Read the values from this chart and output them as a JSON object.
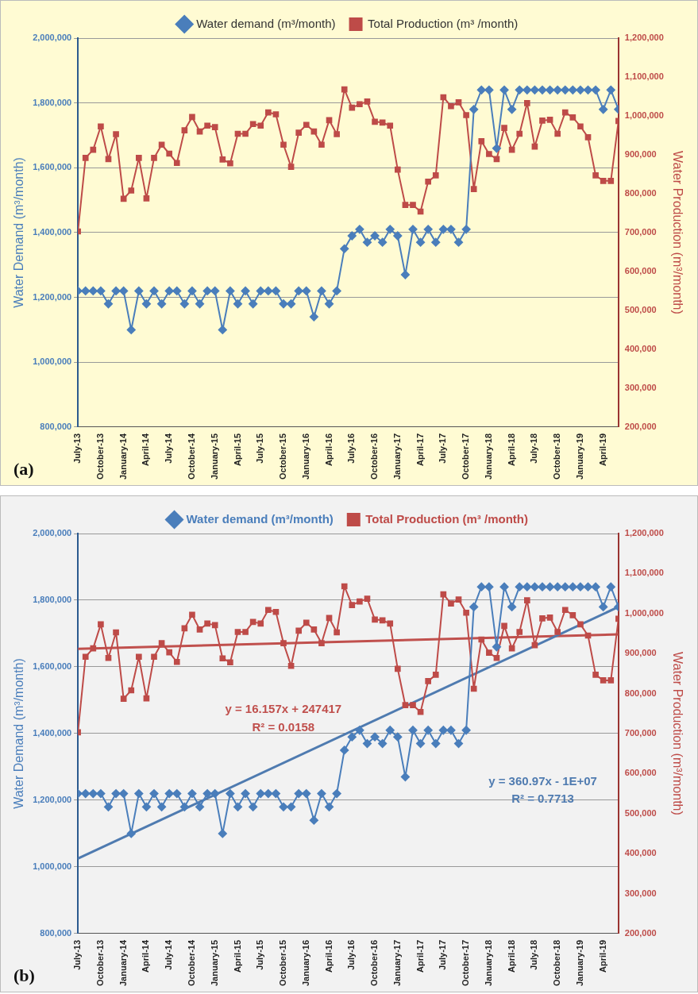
{
  "chart_data": [
    {
      "type": "line",
      "x": [
        "2013-07",
        "2013-08",
        "2013-09",
        "2013-10",
        "2013-11",
        "2013-12",
        "2014-01",
        "2014-02",
        "2014-03",
        "2014-04",
        "2014-05",
        "2014-06",
        "2014-07",
        "2014-08",
        "2014-09",
        "2014-10",
        "2014-11",
        "2014-12",
        "2015-01",
        "2015-02",
        "2015-03",
        "2015-04",
        "2015-05",
        "2015-06",
        "2015-07",
        "2015-08",
        "2015-09",
        "2015-10",
        "2015-11",
        "2015-12",
        "2016-01",
        "2016-02",
        "2016-03",
        "2016-04",
        "2016-05",
        "2016-06",
        "2016-07",
        "2016-08",
        "2016-09",
        "2016-10",
        "2016-11",
        "2016-12",
        "2017-01",
        "2017-02",
        "2017-03",
        "2017-04",
        "2017-05",
        "2017-06",
        "2017-07",
        "2017-08",
        "2017-09",
        "2017-10",
        "2017-11",
        "2017-12",
        "2018-01",
        "2018-02",
        "2018-03",
        "2018-04",
        "2018-05",
        "2018-06",
        "2018-07",
        "2018-08",
        "2018-09",
        "2018-10",
        "2018-11",
        "2018-12",
        "2019-01",
        "2019-02",
        "2019-03",
        "2019-04",
        "2019-05",
        "2019-06"
      ],
      "series": [
        {
          "name": "Water demand (m³/month)",
          "color": "#4a7ebb",
          "marker": "diamond",
          "axis": "y",
          "values": [
            1220000,
            1220000,
            1220000,
            1220000,
            1180000,
            1220000,
            1220000,
            1100000,
            1220000,
            1180000,
            1220000,
            1180000,
            1220000,
            1220000,
            1180000,
            1220000,
            1180000,
            1220000,
            1220000,
            1100000,
            1220000,
            1180000,
            1220000,
            1180000,
            1220000,
            1220000,
            1220000,
            1180000,
            1180000,
            1220000,
            1220000,
            1140000,
            1220000,
            1180000,
            1220000,
            1350000,
            1390000,
            1410000,
            1370000,
            1390000,
            1370000,
            1410000,
            1390000,
            1270000,
            1410000,
            1370000,
            1410000,
            1370000,
            1410000,
            1410000,
            1370000,
            1410000,
            1780000,
            1840000,
            1840000,
            1660000,
            1840000,
            1780000,
            1840000,
            1840000,
            1840000,
            1840000,
            1840000,
            1840000,
            1840000,
            1840000,
            1840000,
            1840000,
            1840000,
            1780000,
            1840000,
            1780000
          ]
        },
        {
          "name": "Total Production (m³ /month)",
          "color": "#be4b48",
          "marker": "square",
          "axis": "y2",
          "values": [
            703000,
            892000,
            913000,
            973000,
            889000,
            953000,
            787000,
            808000,
            892000,
            788000,
            892000,
            926000,
            903000,
            879000,
            963000,
            997000,
            960000,
            975000,
            971000,
            888000,
            878000,
            954000,
            954000,
            979000,
            975000,
            1009000,
            1004000,
            926000,
            869000,
            957000,
            977000,
            960000,
            926000,
            989000,
            953000,
            1068000,
            1021000,
            1030000,
            1037000,
            985000,
            983000,
            975000,
            862000,
            771000,
            771000,
            754000,
            831000,
            847000,
            1048000,
            1025000,
            1035000,
            1002000,
            812000,
            935000,
            902000,
            889000,
            969000,
            913000,
            954000,
            1033000,
            921000,
            988000,
            990000,
            954000,
            1009000,
            996000,
            973000,
            945000,
            847000,
            833000,
            833000,
            987000
          ]
        }
      ],
      "xlim": [
        "2013-07",
        "2019-06"
      ],
      "xticks": [
        {
          "value": "2013-07",
          "label": "July-13"
        },
        {
          "value": "2013-10",
          "label": "October-13"
        },
        {
          "value": "2014-01",
          "label": "January-14"
        },
        {
          "value": "2014-04",
          "label": "April-14"
        },
        {
          "value": "2014-07",
          "label": "July-14"
        },
        {
          "value": "2014-10",
          "label": "October-14"
        },
        {
          "value": "2015-01",
          "label": "January-15"
        },
        {
          "value": "2015-04",
          "label": "April-15"
        },
        {
          "value": "2015-07",
          "label": "July-15"
        },
        {
          "value": "2015-10",
          "label": "October-15"
        },
        {
          "value": "2016-01",
          "label": "January-16"
        },
        {
          "value": "2016-04",
          "label": "April-16"
        },
        {
          "value": "2016-07",
          "label": "July-16"
        },
        {
          "value": "2016-10",
          "label": "October-16"
        },
        {
          "value": "2017-01",
          "label": "January-17"
        },
        {
          "value": "2017-04",
          "label": "April-17"
        },
        {
          "value": "2017-07",
          "label": "July-17"
        },
        {
          "value": "2017-10",
          "label": "October-17"
        },
        {
          "value": "2018-01",
          "label": "January-18"
        },
        {
          "value": "2018-04",
          "label": "April-18"
        },
        {
          "value": "2018-07",
          "label": "July-18"
        },
        {
          "value": "2018-10",
          "label": "October-18"
        },
        {
          "value": "2019-01",
          "label": "January-19"
        },
        {
          "value": "2019-04",
          "label": "April-19"
        }
      ],
      "ylim": [
        800000,
        2000000
      ],
      "yticks": [
        {
          "value": 800000,
          "label": "800,000"
        },
        {
          "value": 1000000,
          "label": "1,000,000"
        },
        {
          "value": 1200000,
          "label": "1,200,000"
        },
        {
          "value": 1400000,
          "label": "1,400,000"
        },
        {
          "value": 1600000,
          "label": "1,600,000"
        },
        {
          "value": 1800000,
          "label": "1,800,000"
        },
        {
          "value": 2000000,
          "label": "2,000,000"
        }
      ],
      "y2lim": [
        200000,
        1200000
      ],
      "y2ticks": [
        {
          "value": 200000,
          "label": "200,000"
        },
        {
          "value": 300000,
          "label": "300,000"
        },
        {
          "value": 400000,
          "label": "400,000"
        },
        {
          "value": 500000,
          "label": "500,000"
        },
        {
          "value": 600000,
          "label": "600,000"
        },
        {
          "value": 700000,
          "label": "700,000"
        },
        {
          "value": 800000,
          "label": "800,000"
        },
        {
          "value": 900000,
          "label": "900,000"
        },
        {
          "value": 1000000,
          "label": "1,000,000"
        },
        {
          "value": 1100000,
          "label": "1,100,000"
        },
        {
          "value": 1200000,
          "label": "1,200,000"
        }
      ],
      "ylabel": "Water Demand (m³/month)",
      "y2label": "Water Production (m³/month)",
      "grid": "y",
      "legend": "top",
      "line_style": "solid",
      "annotations": [
        "(a)"
      ]
    },
    {
      "type": "line",
      "x": [
        "2013-07",
        "2013-08",
        "2013-09",
        "2013-10",
        "2013-11",
        "2013-12",
        "2014-01",
        "2014-02",
        "2014-03",
        "2014-04",
        "2014-05",
        "2014-06",
        "2014-07",
        "2014-08",
        "2014-09",
        "2014-10",
        "2014-11",
        "2014-12",
        "2015-01",
        "2015-02",
        "2015-03",
        "2015-04",
        "2015-05",
        "2015-06",
        "2015-07",
        "2015-08",
        "2015-09",
        "2015-10",
        "2015-11",
        "2015-12",
        "2016-01",
        "2016-02",
        "2016-03",
        "2016-04",
        "2016-05",
        "2016-06",
        "2016-07",
        "2016-08",
        "2016-09",
        "2016-10",
        "2016-11",
        "2016-12",
        "2017-01",
        "2017-02",
        "2017-03",
        "2017-04",
        "2017-05",
        "2017-06",
        "2017-07",
        "2017-08",
        "2017-09",
        "2017-10",
        "2017-11",
        "2017-12",
        "2018-01",
        "2018-02",
        "2018-03",
        "2018-04",
        "2018-05",
        "2018-06",
        "2018-07",
        "2018-08",
        "2018-09",
        "2018-10",
        "2018-11",
        "2018-12",
        "2019-01",
        "2019-02",
        "2019-03",
        "2019-04",
        "2019-05",
        "2019-06"
      ],
      "series": [
        {
          "name": "Water demand (m³/month)",
          "color": "#4a7ebb",
          "marker": "diamond",
          "axis": "y",
          "values": [
            1220000,
            1220000,
            1220000,
            1220000,
            1180000,
            1220000,
            1220000,
            1100000,
            1220000,
            1180000,
            1220000,
            1180000,
            1220000,
            1220000,
            1180000,
            1220000,
            1180000,
            1220000,
            1220000,
            1100000,
            1220000,
            1180000,
            1220000,
            1180000,
            1220000,
            1220000,
            1220000,
            1180000,
            1180000,
            1220000,
            1220000,
            1140000,
            1220000,
            1180000,
            1220000,
            1350000,
            1390000,
            1410000,
            1370000,
            1390000,
            1370000,
            1410000,
            1390000,
            1270000,
            1410000,
            1370000,
            1410000,
            1370000,
            1410000,
            1410000,
            1370000,
            1410000,
            1780000,
            1840000,
            1840000,
            1660000,
            1840000,
            1780000,
            1840000,
            1840000,
            1840000,
            1840000,
            1840000,
            1840000,
            1840000,
            1840000,
            1840000,
            1840000,
            1840000,
            1780000,
            1840000,
            1780000
          ]
        },
        {
          "name": "Total Production (m³ /month)",
          "color": "#be4b48",
          "marker": "square",
          "axis": "y2",
          "values": [
            703000,
            892000,
            913000,
            973000,
            889000,
            953000,
            787000,
            808000,
            892000,
            788000,
            892000,
            926000,
            903000,
            879000,
            963000,
            997000,
            960000,
            975000,
            971000,
            888000,
            878000,
            954000,
            954000,
            979000,
            975000,
            1009000,
            1004000,
            926000,
            869000,
            957000,
            977000,
            960000,
            926000,
            989000,
            953000,
            1068000,
            1021000,
            1030000,
            1037000,
            985000,
            983000,
            975000,
            862000,
            771000,
            771000,
            754000,
            831000,
            847000,
            1048000,
            1025000,
            1035000,
            1002000,
            812000,
            935000,
            902000,
            889000,
            969000,
            913000,
            954000,
            1033000,
            921000,
            988000,
            990000,
            954000,
            1009000,
            996000,
            973000,
            945000,
            847000,
            833000,
            833000,
            987000
          ]
        },
        {
          "type": "line",
          "color": "#4f7bb0",
          "marker": "none",
          "axis": "y",
          "x": [
            "2013-07",
            "2019-06"
          ],
          "values": [
            1025000,
            1780000
          ]
        },
        {
          "type": "line",
          "color": "#c0504d",
          "marker": "none",
          "axis": "y2",
          "x": [
            "2013-07",
            "2019-06"
          ],
          "values": [
            912000,
            948000
          ]
        }
      ],
      "xlim": [
        "2013-07",
        "2019-06"
      ],
      "xticks": [
        {
          "value": "2013-07",
          "label": "July-13"
        },
        {
          "value": "2013-10",
          "label": "October-13"
        },
        {
          "value": "2014-01",
          "label": "January-14"
        },
        {
          "value": "2014-04",
          "label": "April-14"
        },
        {
          "value": "2014-07",
          "label": "July-14"
        },
        {
          "value": "2014-10",
          "label": "October-14"
        },
        {
          "value": "2015-01",
          "label": "January-15"
        },
        {
          "value": "2015-04",
          "label": "April-15"
        },
        {
          "value": "2015-07",
          "label": "July-15"
        },
        {
          "value": "2015-10",
          "label": "October-15"
        },
        {
          "value": "2016-01",
          "label": "January-16"
        },
        {
          "value": "2016-04",
          "label": "April-16"
        },
        {
          "value": "2016-07",
          "label": "July-16"
        },
        {
          "value": "2016-10",
          "label": "October-16"
        },
        {
          "value": "2017-01",
          "label": "January-17"
        },
        {
          "value": "2017-04",
          "label": "April-17"
        },
        {
          "value": "2017-07",
          "label": "July-17"
        },
        {
          "value": "2017-10",
          "label": "October-17"
        },
        {
          "value": "2018-01",
          "label": "January-18"
        },
        {
          "value": "2018-04",
          "label": "April-18"
        },
        {
          "value": "2018-07",
          "label": "July-18"
        },
        {
          "value": "2018-10",
          "label": "October-18"
        },
        {
          "value": "2019-01",
          "label": "January-19"
        },
        {
          "value": "2019-04",
          "label": "April-19"
        }
      ],
      "ylim": [
        800000,
        2000000
      ],
      "yticks": [
        {
          "value": 800000,
          "label": "800,000"
        },
        {
          "value": 1000000,
          "label": "1,000,000"
        },
        {
          "value": 1200000,
          "label": "1,200,000"
        },
        {
          "value": 1400000,
          "label": "1,400,000"
        },
        {
          "value": 1600000,
          "label": "1,600,000"
        },
        {
          "value": 1800000,
          "label": "1,800,000"
        },
        {
          "value": 2000000,
          "label": "2,000,000"
        }
      ],
      "y2lim": [
        200000,
        1200000
      ],
      "y2ticks": [
        {
          "value": 200000,
          "label": "200,000"
        },
        {
          "value": 300000,
          "label": "300,000"
        },
        {
          "value": 400000,
          "label": "400,000"
        },
        {
          "value": 500000,
          "label": "500,000"
        },
        {
          "value": 600000,
          "label": "600,000"
        },
        {
          "value": 700000,
          "label": "700,000"
        },
        {
          "value": 800000,
          "label": "800,000"
        },
        {
          "value": 900000,
          "label": "900,000"
        },
        {
          "value": 1000000,
          "label": "1,000,000"
        },
        {
          "value": 1100000,
          "label": "1,100,000"
        },
        {
          "value": 1200000,
          "label": "1,200,000"
        }
      ],
      "ylabel": "Water Demand (m³/month)",
      "y2label": "Water Production (m³/month)",
      "grid": "y",
      "legend": "top",
      "line_style": "solid",
      "annotations": [
        "y = 16.157x + 247417",
        "R² = 0.0158",
        "y = 360.97x - 1E+07",
        "R² = 0.7713",
        "(b)"
      ]
    }
  ]
}
